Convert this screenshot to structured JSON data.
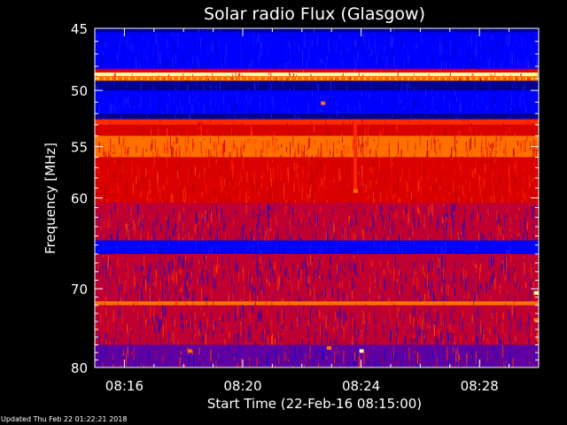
{
  "footer": {
    "updated": "Updated Thu Feb 22 01:22:21 2018"
  },
  "chart_data": {
    "type": "heatmap",
    "title": "Solar radio Flux (Glasgow)",
    "xlabel": "Start Time (22-Feb-16 08:15:00)",
    "ylabel": "Frequency [MHz]",
    "x_unit": "minutes after 08:15:00",
    "xlim": [
      0.0,
      15.0
    ],
    "ylim": [
      45,
      80
    ],
    "y_log_scale": true,
    "x_ticks": [
      {
        "value": 1,
        "label": "08:16"
      },
      {
        "value": 5,
        "label": "08:20"
      },
      {
        "value": 9,
        "label": "08:24"
      },
      {
        "value": 13,
        "label": "08:28"
      }
    ],
    "y_ticks": [
      {
        "value": 45,
        "label": "45"
      },
      {
        "value": 50,
        "label": "50"
      },
      {
        "value": 55,
        "label": "55"
      },
      {
        "value": 60,
        "label": "60"
      },
      {
        "value": 70,
        "label": "70"
      },
      {
        "value": 80,
        "label": "80"
      }
    ],
    "minor_y_ticks": [
      46,
      47,
      48,
      49,
      51,
      52,
      53,
      54,
      56,
      57,
      58,
      59,
      61,
      62,
      63,
      64,
      65,
      66,
      67,
      68,
      69,
      71,
      72,
      73,
      74,
      75,
      76,
      77,
      78,
      79
    ],
    "minor_x_ticks": [
      0,
      2,
      3,
      4,
      6,
      7,
      8,
      10,
      11,
      12,
      14,
      15
    ],
    "color_scale": [
      "#000060",
      "#0000ff",
      "#ff0000",
      "#ff8000",
      "#ffff00",
      "#ffffff"
    ],
    "frequency_bands": [
      {
        "f_start": 45.0,
        "f_end": 45.3,
        "level": "dark blue"
      },
      {
        "f_start": 45.3,
        "f_end": 48.2,
        "level": "blue"
      },
      {
        "f_start": 48.2,
        "f_end": 48.5,
        "level": "red"
      },
      {
        "f_start": 48.5,
        "f_end": 48.8,
        "level": "yellow-white"
      },
      {
        "f_start": 48.8,
        "f_end": 49.2,
        "level": "orange"
      },
      {
        "f_start": 49.2,
        "f_end": 50.0,
        "level": "dark blue"
      },
      {
        "f_start": 50.0,
        "f_end": 52.0,
        "level": "blue"
      },
      {
        "f_start": 52.0,
        "f_end": 52.5,
        "level": "dark blue"
      },
      {
        "f_start": 52.5,
        "f_end": 53.0,
        "level": "red-orange"
      },
      {
        "f_start": 53.0,
        "f_end": 54.0,
        "level": "red"
      },
      {
        "f_start": 54.0,
        "f_end": 56.0,
        "level": "orange"
      },
      {
        "f_start": 56.0,
        "f_end": 60.5,
        "level": "red"
      },
      {
        "f_start": 60.5,
        "f_end": 64.5,
        "level": "red-blue mix"
      },
      {
        "f_start": 64.5,
        "f_end": 66.0,
        "level": "blue"
      },
      {
        "f_start": 66.0,
        "f_end": 71.5,
        "level": "red-blue mix"
      },
      {
        "f_start": 71.5,
        "f_end": 72.0,
        "level": "orange"
      },
      {
        "f_start": 72.0,
        "f_end": 77.0,
        "level": "red-blue mix"
      },
      {
        "f_start": 77.0,
        "f_end": 80.0,
        "level": "blue-red mix"
      }
    ],
    "features": [
      {
        "time": 8.8,
        "f_start": 52.5,
        "f_end": 59.5,
        "level": "red-orange",
        "description": "vertical stripe"
      },
      {
        "time": 7.7,
        "freq": 51.1,
        "level": "orange"
      },
      {
        "time": 8.8,
        "freq": 59.3,
        "level": "orange"
      },
      {
        "time": 9.0,
        "freq": 77.8,
        "level": "yellow-white"
      },
      {
        "time": 3.2,
        "freq": 77.8,
        "level": "orange"
      },
      {
        "time": 7.9,
        "freq": 77.4,
        "level": "orange"
      },
      {
        "time": 14.9,
        "freq": 70.5,
        "level": "yellow-white"
      },
      {
        "time": 14.9,
        "freq": 73.8,
        "level": "orange"
      }
    ]
  }
}
